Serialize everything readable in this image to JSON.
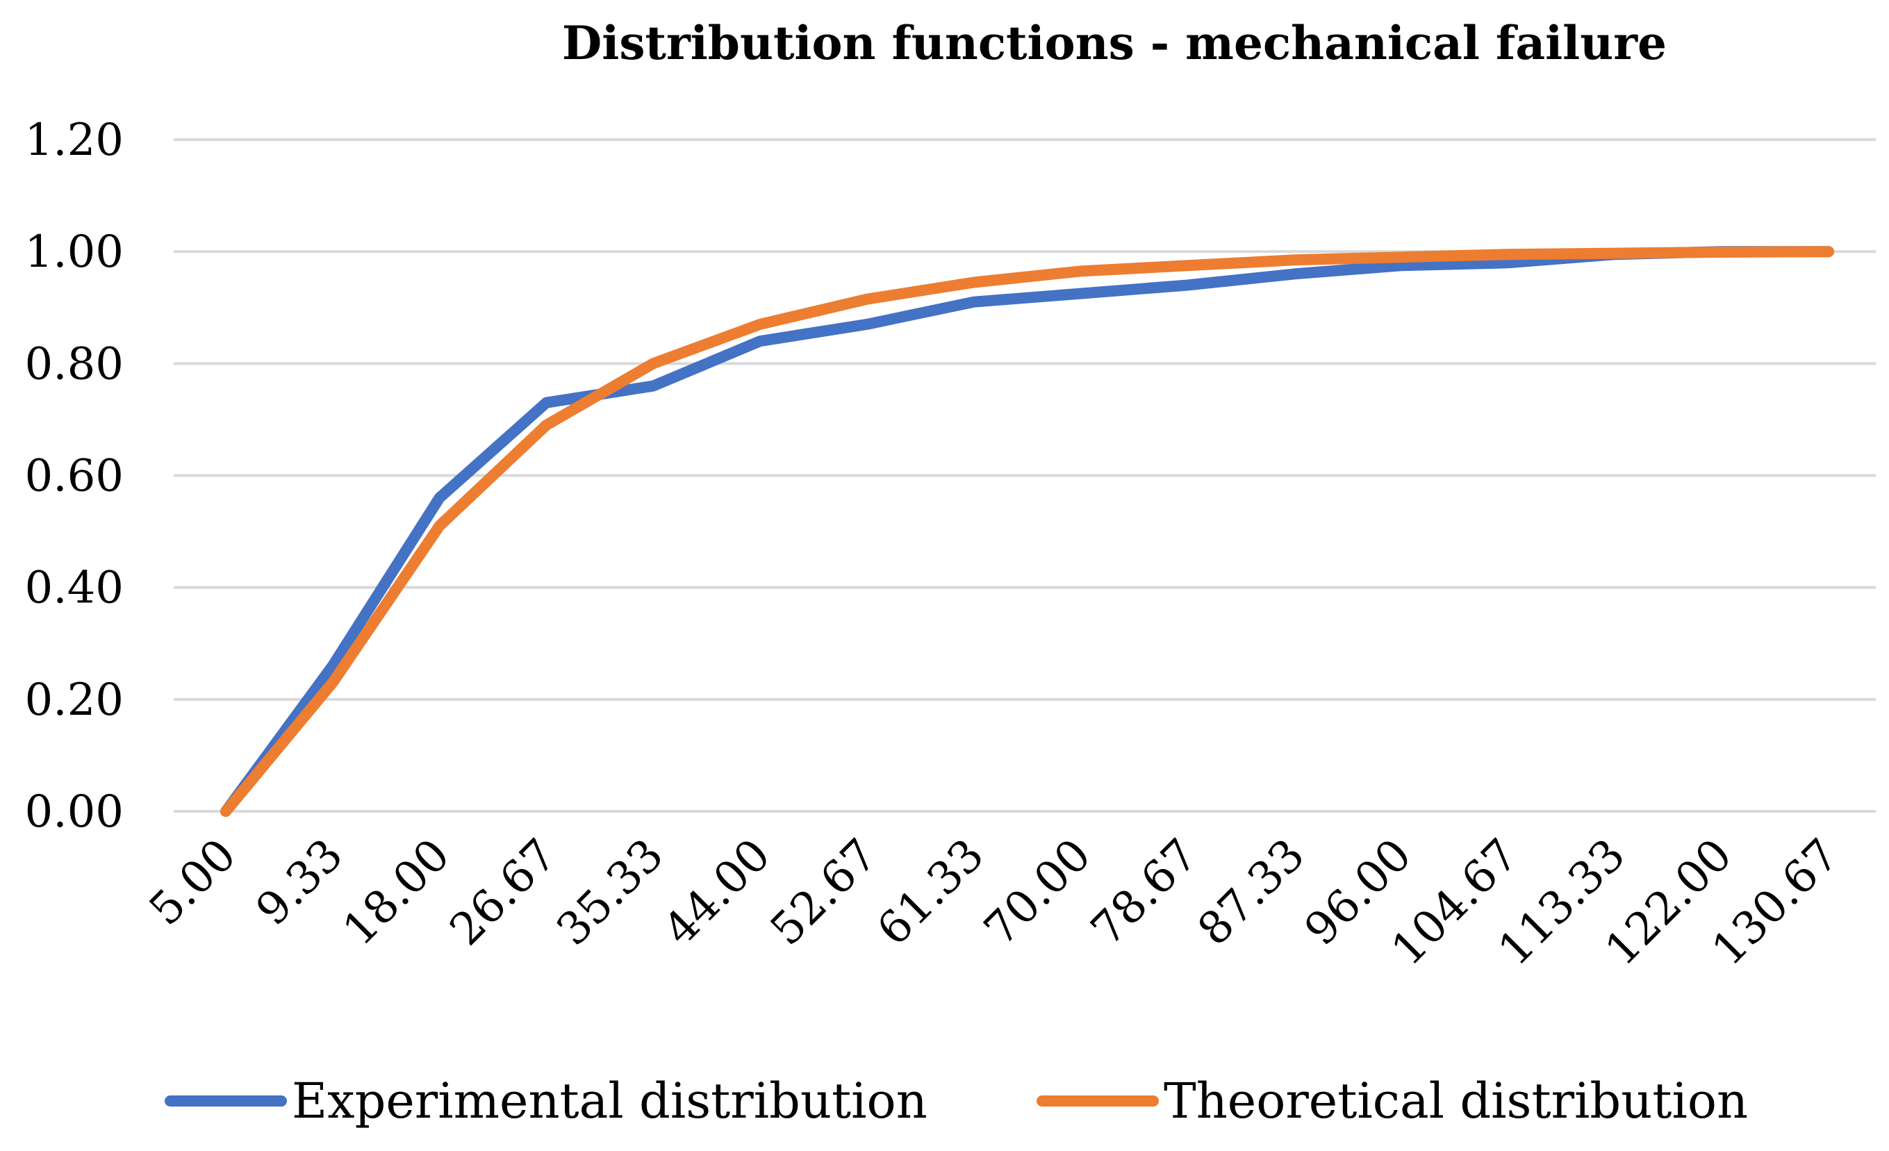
{
  "chart_data": {
    "type": "line",
    "title": "Distribution functions - mechanical failure",
    "xlabel": "",
    "ylabel": "",
    "categories": [
      "5.00",
      "9.33",
      "18.00",
      "26.67",
      "35.33",
      "44.00",
      "52.67",
      "61.33",
      "70.00",
      "78.67",
      "87.33",
      "96.00",
      "104.67",
      "113.33",
      "122.00",
      "130.67"
    ],
    "ylim": [
      0,
      1.2
    ],
    "yticks": [
      "0.00",
      "0.20",
      "0.40",
      "0.60",
      "0.80",
      "1.00",
      "1.20"
    ],
    "ytick_values": [
      0,
      0.2,
      0.4,
      0.6,
      0.8,
      1.0,
      1.2
    ],
    "grid": true,
    "legend_position": "bottom",
    "series": [
      {
        "name": "Experimental distribution",
        "color": "#4472c4",
        "values": [
          0.0,
          0.26,
          0.56,
          0.73,
          0.76,
          0.84,
          0.87,
          0.91,
          0.925,
          0.94,
          0.96,
          0.975,
          0.98,
          0.995,
          1.0,
          1.0
        ]
      },
      {
        "name": "Theoretical distribution",
        "color": "#ed7d31",
        "values": [
          0.0,
          0.23,
          0.51,
          0.69,
          0.8,
          0.87,
          0.915,
          0.945,
          0.965,
          0.975,
          0.985,
          0.99,
          0.995,
          0.997,
          0.999,
          1.0
        ]
      }
    ]
  }
}
